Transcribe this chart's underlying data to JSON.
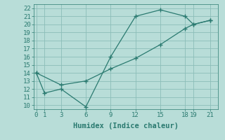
{
  "line1_x": [
    0,
    1,
    3,
    6,
    9,
    12,
    15,
    18,
    19,
    21
  ],
  "line1_y": [
    14,
    11.5,
    12,
    9.8,
    16,
    21,
    21.8,
    21,
    20,
    20.5
  ],
  "line2_x": [
    0,
    3,
    6,
    9,
    12,
    15,
    18,
    19,
    21
  ],
  "line2_y": [
    14,
    12.5,
    13,
    14.5,
    15.8,
    17.5,
    19.5,
    20,
    20.5
  ],
  "line_color": "#2a7a70",
  "marker": "+",
  "markersize": 4,
  "markeredgewidth": 1.0,
  "linewidth": 0.9,
  "xlabel": "Humidex (Indice chaleur)",
  "xticks": [
    0,
    1,
    3,
    6,
    9,
    12,
    15,
    18,
    19,
    21
  ],
  "yticks": [
    10,
    11,
    12,
    13,
    14,
    15,
    16,
    17,
    18,
    19,
    20,
    21,
    22
  ],
  "xlim": [
    -0.3,
    22
  ],
  "ylim": [
    9.5,
    22.5
  ],
  "bg_color": "#b8ddd8",
  "grid_color": "#8bbdb8",
  "xlabel_fontsize": 7.5,
  "tick_fontsize": 6.5
}
